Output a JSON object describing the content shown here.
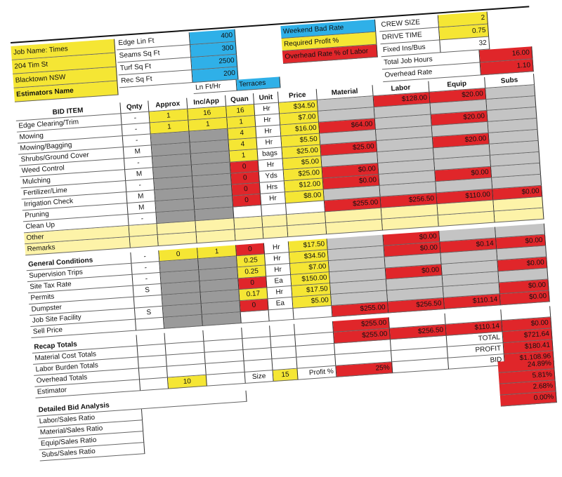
{
  "job": {
    "lines": [
      "Job Name: Times",
      "204 Tim St",
      "Blacktown NSW",
      "Estimators Name"
    ]
  },
  "measures": [
    {
      "label": "Edge Lin Ft",
      "value": 400
    },
    {
      "label": "Seams Sq Ft",
      "value": 300
    },
    {
      "label": "Turf Sq Ft",
      "value": 2500
    },
    {
      "label": "Rec Sq Ft",
      "value": 200
    }
  ],
  "extras": [
    "Ln Ft/Hr",
    "Terraces"
  ],
  "rates": [
    "Weekend Bad Rate",
    "Required Profit %",
    "Overhead Rate % of Labor"
  ],
  "crew": [
    {
      "label": "CREW SIZE",
      "value": 2
    },
    {
      "label": "DRIVE TIME",
      "value": 0.75
    },
    {
      "label": "Fixed Ins/Bus",
      "value": 32
    },
    {
      "label": "Total Job Hours",
      "value": "16.00"
    },
    {
      "label": "Overhead Rate",
      "value": "1.10"
    }
  ],
  "columns": [
    "BID ITEM",
    "Qnty",
    "Approx",
    "Inc/App",
    "Quan",
    "Unit",
    "Price",
    "Material",
    "Labor",
    "Equip",
    "Subs"
  ],
  "sections": [
    {
      "rows": [
        [
          "Edge Clearing/Trim",
          "-",
          "1",
          "16",
          "16",
          "Hr",
          "$34.50",
          null,
          "$128.00",
          "$20.00",
          null
        ],
        [
          "Mowing",
          "-",
          "1",
          "1",
          "1",
          "Hr",
          "$7.00",
          null,
          null,
          null,
          null
        ],
        [
          "Mowing/Bagging",
          "-",
          null,
          null,
          "4",
          "Hr",
          "$16.00",
          "$64.00",
          null,
          "$20.00",
          null
        ],
        [
          "Shrubs/Ground Cover",
          "M",
          null,
          null,
          "4",
          "Hr",
          "$5.50",
          null,
          null,
          null,
          null
        ],
        [
          "Weed Control",
          "-",
          null,
          null,
          "1",
          "bags",
          "$25.00",
          "$25.00",
          null,
          "$20.00",
          null
        ],
        [
          "Mulching",
          "M",
          null,
          null,
          "0",
          "Hr",
          "$5.00",
          null,
          null,
          null,
          null
        ],
        [
          "Fertilizer/Lime",
          "-",
          null,
          null,
          "0",
          "Yds",
          "$25.00",
          "$0.00",
          null,
          null,
          null
        ],
        [
          "Irrigation Check",
          "M",
          null,
          null,
          "0",
          "Hrs",
          "$12.00",
          "$0.00",
          null,
          "$0.00",
          null
        ],
        [
          "Pruning",
          "M",
          null,
          null,
          "0",
          "Hr",
          "$8.00",
          null,
          null,
          null,
          null
        ],
        [
          "Clean Up",
          "-",
          null,
          null,
          null,
          null,
          null,
          "$255.00",
          "$256.50",
          "$110.00",
          "$0.00"
        ],
        [
          "Other",
          null,
          null,
          null,
          null,
          null,
          null,
          null,
          null,
          null,
          null
        ],
        [
          "Remarks",
          null,
          null,
          null,
          null,
          null,
          null,
          null,
          null,
          null,
          null
        ]
      ]
    },
    {
      "rows": [
        [
          "General Conditions",
          "-",
          "0",
          "1",
          "0",
          "Hr",
          "$17.50",
          null,
          "$0.00",
          null,
          null
        ],
        [
          "Supervision Trips",
          "-",
          null,
          null,
          "0.25",
          "Hr",
          "$34.50",
          null,
          "$0.00",
          "$0.14",
          "$0.00"
        ],
        [
          "Site Tax Rate",
          "-",
          null,
          null,
          "0.25",
          "Hr",
          "$7.00",
          null,
          null,
          null,
          null
        ],
        [
          "Permits",
          "S",
          null,
          null,
          "0",
          "Ea",
          "$150.00",
          null,
          "$0.00",
          null,
          "$0.00"
        ],
        [
          "Dumpster",
          null,
          null,
          null,
          "0.17",
          "Hr",
          "$17.50",
          null,
          null,
          null,
          null
        ],
        [
          "Job Site Facility",
          "S",
          null,
          null,
          "0",
          "Ea",
          "$5.00",
          null,
          null,
          null,
          "$0.00"
        ],
        [
          "Sell Price",
          null,
          null,
          null,
          null,
          null,
          null,
          "$255.00",
          "$256.50",
          "$110.14",
          "$0.00"
        ]
      ]
    },
    {
      "rows": [
        [
          "Recap Totals",
          null,
          null,
          null,
          null,
          null,
          null,
          "$255.00",
          null,
          null,
          null
        ],
        [
          "Material Cost Totals",
          null,
          null,
          null,
          null,
          null,
          null,
          "$255.00",
          "$256.50",
          "$110.14",
          "$0.00"
        ],
        [
          "Labor Burden Totals",
          null,
          null,
          null,
          null,
          null,
          null,
          null,
          null,
          "TOTAL",
          "$721.64"
        ],
        [
          "Overhead Totals",
          null,
          null,
          null,
          null,
          null,
          null,
          null,
          null,
          "PROFIT",
          "$180.41"
        ],
        [
          "Estimator",
          null,
          "10",
          null,
          "Size",
          "15",
          "Profit %",
          "25%",
          null,
          "BID",
          "$1,108.96"
        ]
      ]
    }
  ],
  "analysis": {
    "title": "Detailed Bid Analysis",
    "rows": [
      {
        "label": "Labor/Sales Ratio",
        "value": "24.89%"
      },
      {
        "label": "Material/Sales Ratio",
        "value": "5.81%"
      },
      {
        "label": "Equip/Sales Ratio",
        "value": "2.68%"
      },
      {
        "label": "Subs/Sales Ratio",
        "value": "0.00%"
      }
    ]
  }
}
